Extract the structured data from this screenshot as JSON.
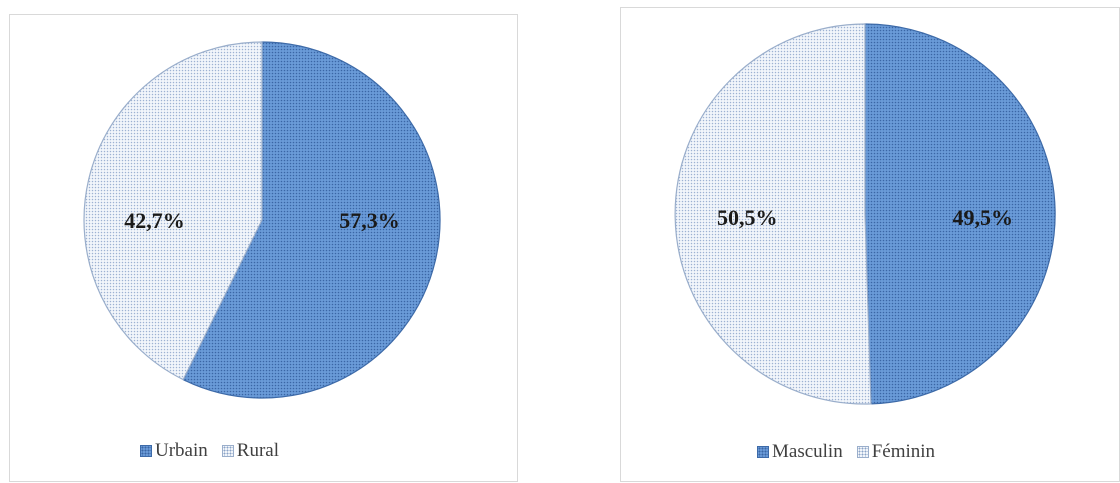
{
  "chart_data": [
    {
      "type": "pie",
      "categories": [
        "Urbain",
        "Rural"
      ],
      "values": [
        57.3,
        42.7
      ],
      "data_labels": [
        "57,3%",
        "42,7%"
      ],
      "colors": [
        "#6a9bd8",
        "#f2f6fb"
      ],
      "legend": {
        "position": "bottom",
        "entries": [
          "Urbain",
          "Rural"
        ]
      }
    },
    {
      "type": "pie",
      "categories": [
        "Masculin",
        "Féminin"
      ],
      "values": [
        49.5,
        50.5
      ],
      "data_labels": [
        "49,5%",
        "50,5%"
      ],
      "colors": [
        "#6a9bd8",
        "#f2f6fb"
      ],
      "legend": {
        "position": "bottom",
        "entries": [
          "Masculin",
          "Féminin"
        ]
      }
    }
  ]
}
